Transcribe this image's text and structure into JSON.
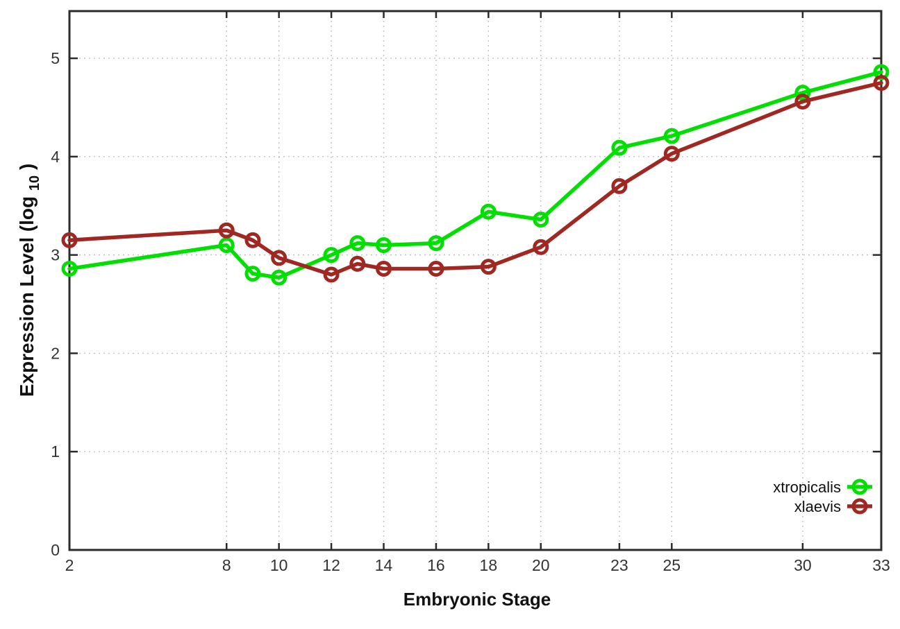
{
  "chart_data": {
    "type": "line",
    "title": "",
    "xlabel": "Embryonic Stage",
    "ylabel": "Expression Level (log10)",
    "ylabel_parts": {
      "main": "Expression Level (log",
      "sub": "10",
      "end": ")"
    },
    "x": [
      2,
      8,
      9,
      10,
      12,
      13,
      14,
      16,
      18,
      20,
      23,
      25,
      30,
      33
    ],
    "series": [
      {
        "name": "xtropicalis",
        "color": "#00e000",
        "values": [
          2.86,
          3.1,
          2.81,
          2.77,
          3.0,
          3.12,
          3.1,
          3.12,
          3.44,
          3.36,
          4.09,
          4.21,
          4.65,
          4.86
        ]
      },
      {
        "name": "xlaevis",
        "color": "#a02823",
        "values": [
          3.15,
          3.25,
          3.15,
          2.97,
          2.8,
          2.91,
          2.86,
          2.86,
          2.88,
          3.08,
          3.7,
          4.03,
          4.56,
          4.75
        ]
      }
    ],
    "x_ticks": [
      2,
      8,
      10,
      12,
      14,
      16,
      18,
      20,
      23,
      25,
      30,
      33
    ],
    "y_ticks": [
      0,
      1,
      2,
      3,
      4,
      5
    ],
    "xlim": [
      2,
      33
    ],
    "ylim": [
      0,
      5.48
    ],
    "grid": true,
    "marker": "open-circle",
    "legend_position": "inside-bottom-right",
    "colors": {
      "grid": "#c0c0c0",
      "axis": "#2b2b2b",
      "tick_text": "#333333",
      "background": "#ffffff"
    }
  }
}
